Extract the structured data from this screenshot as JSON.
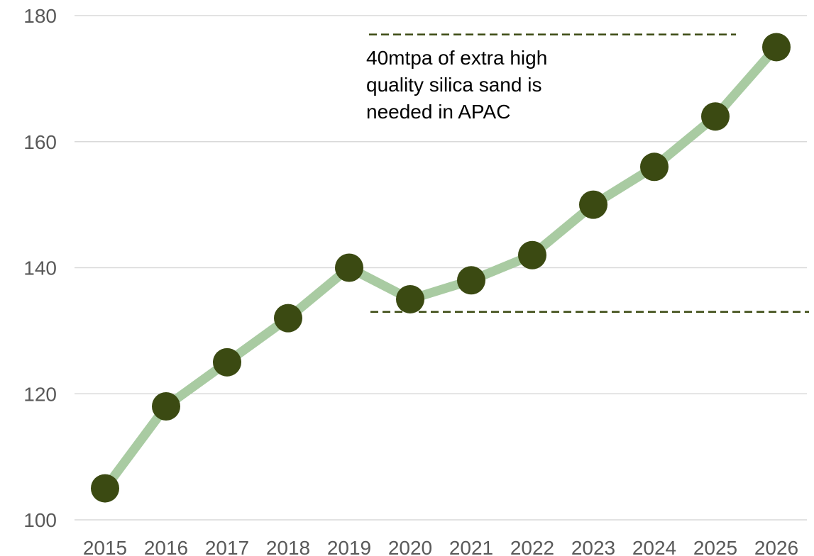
{
  "chart_data": {
    "type": "line",
    "title": "",
    "xlabel": "",
    "ylabel": "",
    "x": [
      "2015",
      "2016",
      "2017",
      "2018",
      "2019",
      "2020",
      "2021",
      "2022",
      "2023",
      "2024",
      "2025",
      "2026"
    ],
    "series": [
      {
        "values": [
          105,
          118,
          125,
          132,
          140,
          135,
          138,
          142,
          150,
          156,
          164,
          175
        ]
      }
    ],
    "ylim": [
      100,
      180
    ],
    "yticks": [
      100,
      120,
      140,
      160,
      180
    ],
    "grid": true,
    "legend": "none",
    "annotation": {
      "lines": [
        "40mtpa of extra high",
        "quality silica sand is",
        "needed in APAC"
      ],
      "upper_ref": 177,
      "lower_ref": 133
    },
    "colors": {
      "line": "#a9cba2",
      "marker": "#3b4a12",
      "dash": "#3b4a12",
      "grid": "#d9d9d9",
      "tick_text": "#595959"
    }
  }
}
